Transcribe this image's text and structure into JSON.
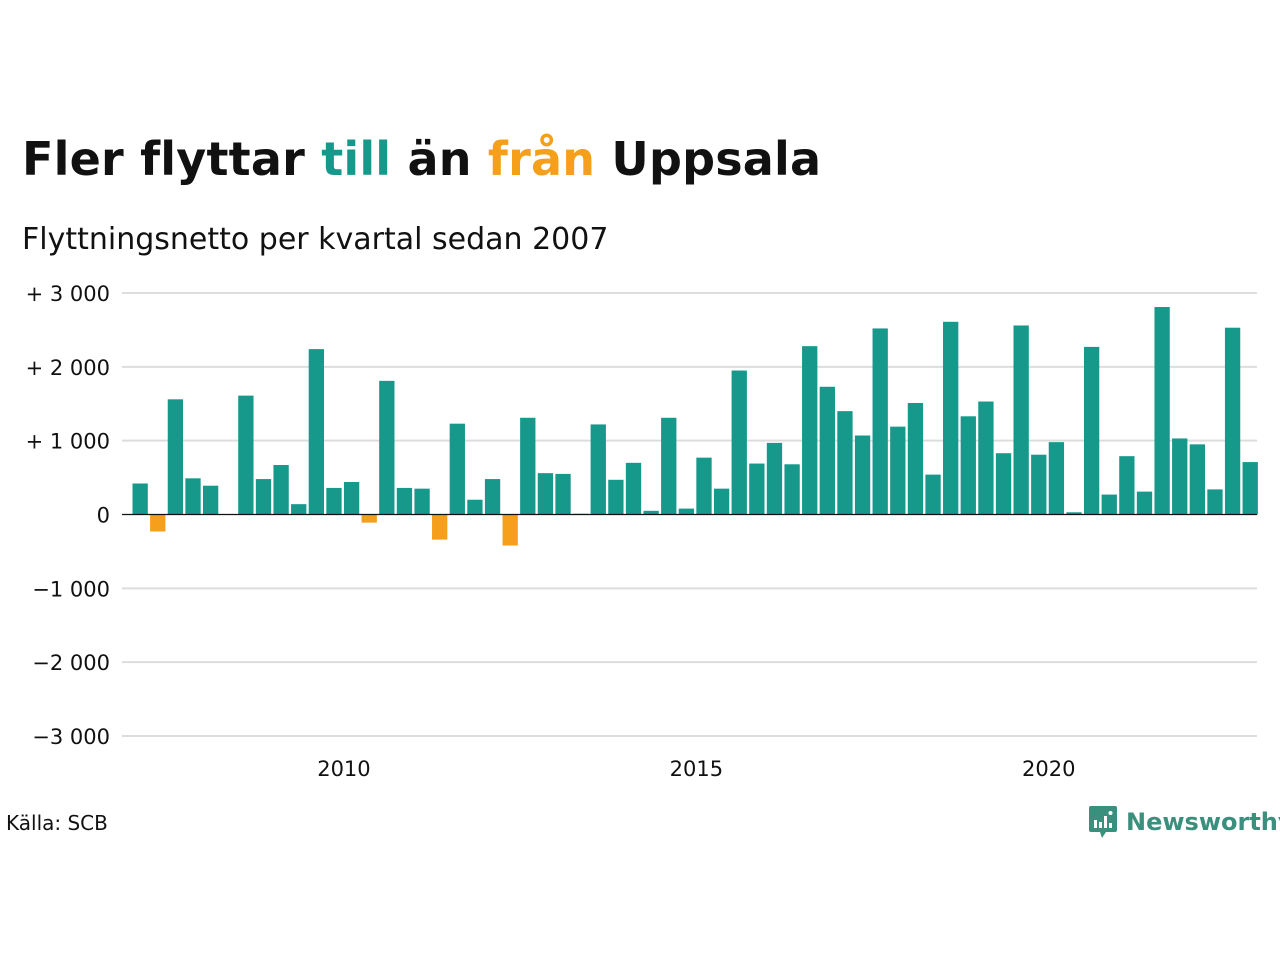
{
  "title": {
    "part1": "Fler flyttar ",
    "till": "till",
    "part2": " än ",
    "fran": "från",
    "part3": " Uppsala"
  },
  "subtitle": "Flyttningsnetto per kvartal sedan 2007",
  "source": "Källa: SCB",
  "brand": "Newsworthy",
  "colors": {
    "positive": "#16988a",
    "negative": "#f59f1a",
    "text": "#111111",
    "grid": "#dddddd",
    "brand": "#3a8f7d"
  },
  "chart_data": {
    "type": "bar",
    "ylim": [
      -3000,
      3000
    ],
    "yticks": [
      {
        "value": 3000,
        "label": "+ 3 000"
      },
      {
        "value": 2000,
        "label": "+ 2 000"
      },
      {
        "value": 1000,
        "label": "+ 1 000"
      },
      {
        "value": 0,
        "label": "0"
      },
      {
        "value": -1000,
        "label": "−1 000"
      },
      {
        "value": -2000,
        "label": "−2 000"
      },
      {
        "value": -3000,
        "label": "−3 000"
      }
    ],
    "xticks": [
      {
        "year": 2010,
        "label": "2010"
      },
      {
        "year": 2015,
        "label": "2015"
      },
      {
        "year": 2020,
        "label": "2020"
      }
    ],
    "grid": true,
    "start": {
      "year": 2007,
      "quarter": 1
    },
    "values": [
      420,
      -230,
      1560,
      490,
      390,
      0,
      1610,
      480,
      670,
      140,
      2240,
      360,
      440,
      -110,
      1810,
      360,
      350,
      -340,
      1230,
      200,
      480,
      -420,
      1310,
      560,
      550,
      10,
      1220,
      470,
      700,
      50,
      1310,
      80,
      770,
      350,
      1950,
      690,
      970,
      680,
      2280,
      1730,
      1400,
      1070,
      2520,
      1190,
      1510,
      540,
      2610,
      1330,
      1530,
      830,
      2560,
      810,
      980,
      30,
      2270,
      270,
      790,
      310,
      2810,
      1030,
      950,
      340,
      2530,
      710
    ]
  }
}
